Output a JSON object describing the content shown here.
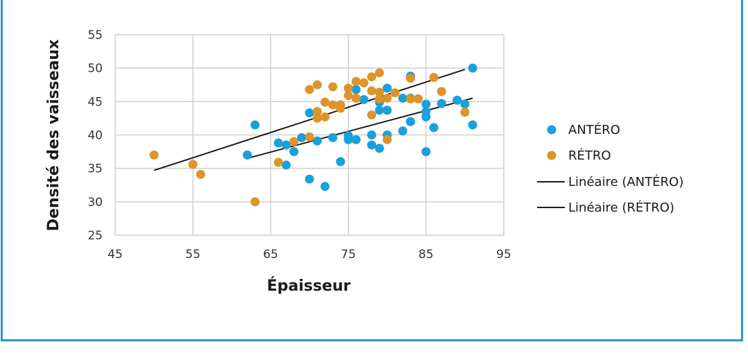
{
  "chart_data": {
    "type": "scatter",
    "xlabel": "Épaisseur",
    "ylabel": "Densité des vaisseaux",
    "xlim": [
      45,
      95
    ],
    "ylim": [
      25,
      55
    ],
    "xticks": [
      "45",
      "55",
      "65",
      "75",
      "85",
      "95"
    ],
    "yticks": [
      "25",
      "30",
      "35",
      "40",
      "45",
      "50",
      "55"
    ],
    "grid": true,
    "legend_position": "right",
    "series": [
      {
        "name": "ANTÉRO",
        "color": "#1aa0dc",
        "points": [
          [
            62,
            37
          ],
          [
            63,
            41.5
          ],
          [
            66,
            38.8
          ],
          [
            67,
            38.5
          ],
          [
            67,
            35.5
          ],
          [
            68,
            37.5
          ],
          [
            69,
            39.6
          ],
          [
            70,
            43.3
          ],
          [
            70,
            33.4
          ],
          [
            71,
            39.1
          ],
          [
            72,
            32.3
          ],
          [
            73,
            39.6
          ],
          [
            74,
            36
          ],
          [
            75,
            39.3
          ],
          [
            75,
            39.9
          ],
          [
            76,
            39.3
          ],
          [
            76,
            46.8
          ],
          [
            77,
            45.3
          ],
          [
            78,
            40
          ],
          [
            78,
            38.5
          ],
          [
            79,
            38
          ],
          [
            79,
            43.7
          ],
          [
            79,
            44.9
          ],
          [
            80,
            47
          ],
          [
            80,
            43.7
          ],
          [
            80,
            40
          ],
          [
            82,
            45.5
          ],
          [
            82,
            40.6
          ],
          [
            83,
            48.8
          ],
          [
            83,
            45.5
          ],
          [
            83,
            42
          ],
          [
            85,
            44.6
          ],
          [
            85,
            43.5
          ],
          [
            85,
            42.7
          ],
          [
            85,
            37.5
          ],
          [
            86,
            41.1
          ],
          [
            87,
            44.7
          ],
          [
            89,
            45.2
          ],
          [
            90,
            44.6
          ],
          [
            91,
            50
          ],
          [
            91,
            41.5
          ]
        ]
      },
      {
        "name": "RÉTRO",
        "color": "#dd9428",
        "points": [
          [
            50,
            37
          ],
          [
            55,
            35.6
          ],
          [
            56,
            34.1
          ],
          [
            63,
            30
          ],
          [
            66,
            35.9
          ],
          [
            68,
            39
          ],
          [
            70,
            46.8
          ],
          [
            70,
            39.7
          ],
          [
            71,
            47.5
          ],
          [
            71,
            43.5
          ],
          [
            71,
            42.5
          ],
          [
            72,
            44.9
          ],
          [
            72,
            42.7
          ],
          [
            73,
            47.2
          ],
          [
            73,
            44.5
          ],
          [
            74,
            44.5
          ],
          [
            74,
            44
          ],
          [
            75,
            47
          ],
          [
            75,
            45.9
          ],
          [
            76,
            48
          ],
          [
            76,
            45.5
          ],
          [
            77,
            47.8
          ],
          [
            78,
            48.7
          ],
          [
            78,
            46.6
          ],
          [
            78,
            43
          ],
          [
            79,
            49.3
          ],
          [
            79,
            46.4
          ],
          [
            79,
            45.4
          ],
          [
            80,
            45.5
          ],
          [
            80,
            39.3
          ],
          [
            81,
            46.3
          ],
          [
            83,
            48.5
          ],
          [
            83,
            45.4
          ],
          [
            84,
            45.4
          ],
          [
            86,
            48.6
          ],
          [
            87,
            46.5
          ],
          [
            90,
            43.4
          ]
        ]
      }
    ],
    "trendlines": [
      {
        "name": "Linéaire (ANTÉRO)",
        "color": "#1a1a1a",
        "x": [
          62,
          91
        ],
        "y": [
          36.5,
          45.5
        ]
      },
      {
        "name": "Linéaire (RÉTRO)",
        "color": "#1a1a1a",
        "x": [
          50,
          90
        ],
        "y": [
          34.7,
          49.8
        ]
      }
    ]
  }
}
